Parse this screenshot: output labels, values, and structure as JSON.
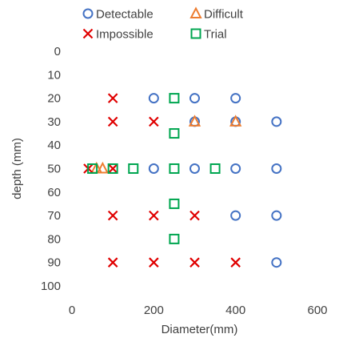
{
  "chart_data": {
    "type": "scatter",
    "title": "",
    "xlabel": "Diameter(mm)",
    "ylabel": "depth (mm)",
    "xlim": [
      0,
      600
    ],
    "ylim": [
      0,
      100
    ],
    "y_reversed": true,
    "x_ticks": [
      0,
      200,
      400,
      600
    ],
    "y_ticks": [
      0,
      10,
      20,
      30,
      40,
      50,
      60,
      70,
      80,
      90,
      100
    ],
    "grid": false,
    "legend": "top",
    "series": [
      {
        "name": "Detectable",
        "marker": "circle",
        "color": "#4472C4",
        "points": [
          [
            200,
            20
          ],
          [
            300,
            20
          ],
          [
            400,
            20
          ],
          [
            300,
            30
          ],
          [
            400,
            30
          ],
          [
            500,
            30
          ],
          [
            200,
            50
          ],
          [
            300,
            50
          ],
          [
            400,
            50
          ],
          [
            500,
            50
          ],
          [
            400,
            70
          ],
          [
            500,
            70
          ],
          [
            500,
            90
          ]
        ]
      },
      {
        "name": "Difficult",
        "marker": "triangle",
        "color": "#ED7D31",
        "points": [
          [
            300,
            30
          ],
          [
            400,
            30
          ],
          [
            60,
            50
          ],
          [
            75,
            50
          ]
        ]
      },
      {
        "name": "Impossible",
        "marker": "x",
        "color": "#E00000",
        "points": [
          [
            100,
            20
          ],
          [
            100,
            30
          ],
          [
            200,
            30
          ],
          [
            40,
            50
          ],
          [
            100,
            50
          ],
          [
            100,
            70
          ],
          [
            200,
            70
          ],
          [
            300,
            70
          ],
          [
            100,
            90
          ],
          [
            200,
            90
          ],
          [
            300,
            90
          ],
          [
            400,
            90
          ]
        ]
      },
      {
        "name": "Trial",
        "marker": "square",
        "color": "#00A650",
        "points": [
          [
            250,
            20
          ],
          [
            250,
            35
          ],
          [
            50,
            50
          ],
          [
            100,
            50
          ],
          [
            150,
            50
          ],
          [
            250,
            50
          ],
          [
            350,
            50
          ],
          [
            250,
            65
          ],
          [
            250,
            80
          ]
        ]
      }
    ]
  }
}
